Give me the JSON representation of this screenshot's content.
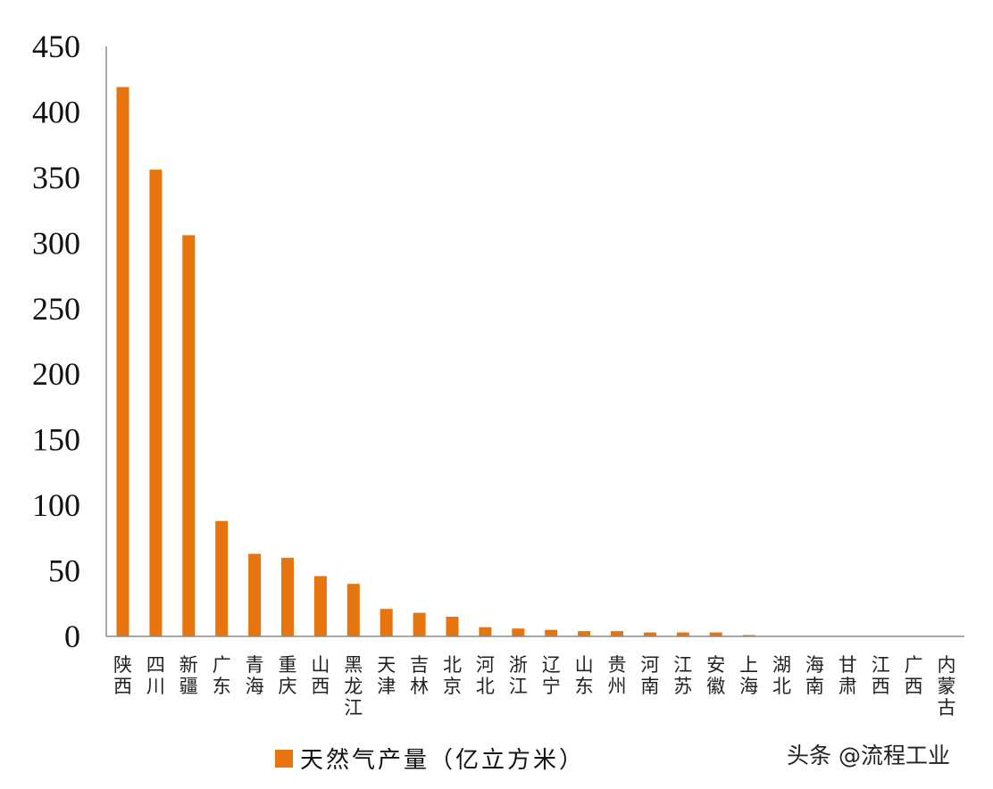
{
  "chart_data": {
    "type": "bar",
    "categories": [
      "陕西",
      "四川",
      "新疆",
      "广东",
      "青海",
      "重庆",
      "山西",
      "黑龙江",
      "天津",
      "吉林",
      "北京",
      "河北",
      "浙江",
      "辽宁",
      "山东",
      "贵州",
      "河南",
      "江苏",
      "安徽",
      "上海",
      "湖北",
      "海南",
      "甘肃",
      "江西",
      "广西",
      "内蒙古"
    ],
    "series": [
      {
        "name": "天然气产量（亿立方米）",
        "values": [
          419,
          356,
          306,
          88,
          63,
          60,
          46,
          40,
          21,
          18,
          15,
          7,
          6,
          5,
          4,
          4,
          3,
          3,
          3,
          1,
          0,
          0,
          0,
          0,
          0,
          0
        ]
      }
    ],
    "ylim": [
      0,
      450
    ],
    "yticks": [
      0,
      50,
      100,
      150,
      200,
      250,
      300,
      350,
      400,
      450
    ],
    "grid": false,
    "legend_position": "bottom-left",
    "colors": {
      "bar": "#E8740E",
      "axis": "#8c8c8c"
    }
  },
  "watermark": "头条 @流程工业"
}
